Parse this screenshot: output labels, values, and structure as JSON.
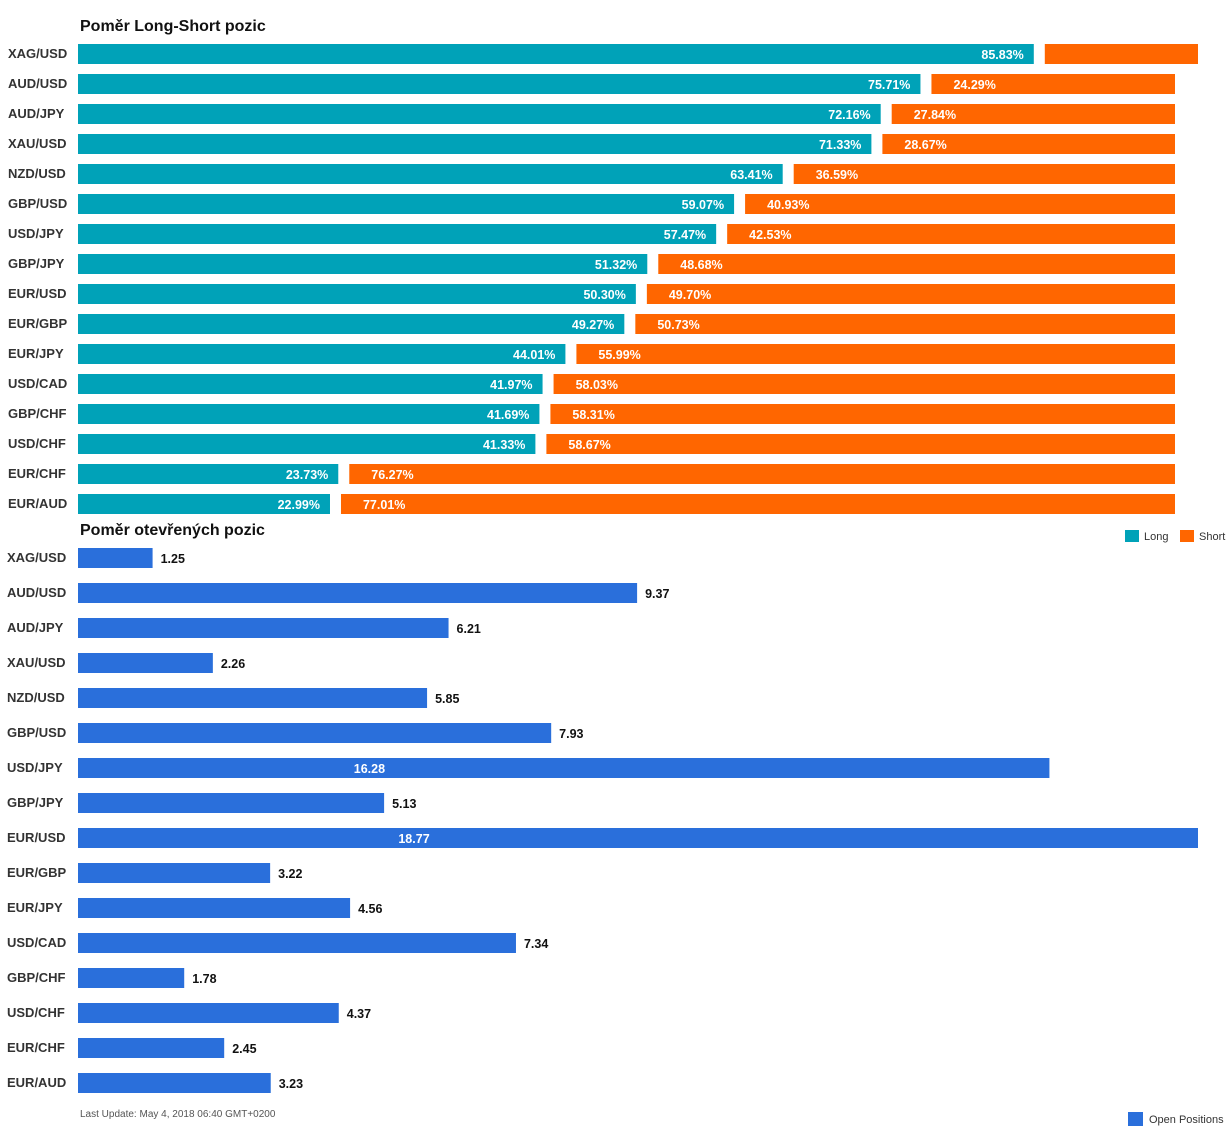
{
  "chart_data": [
    {
      "type": "bar",
      "stacked": true,
      "orientation": "horizontal",
      "title": "Poměr Long-Short pozic",
      "categories": [
        "XAG/USD",
        "AUD/USD",
        "AUD/JPY",
        "XAU/USD",
        "NZD/USD",
        "GBP/USD",
        "USD/JPY",
        "GBP/JPY",
        "EUR/USD",
        "EUR/GBP",
        "EUR/JPY",
        "USD/CAD",
        "GBP/CHF",
        "USD/CHF",
        "EUR/CHF",
        "EUR/AUD"
      ],
      "series": [
        {
          "name": "Long",
          "color": "#00a2b8",
          "values": [
            85.83,
            75.71,
            72.16,
            71.33,
            63.41,
            59.07,
            57.47,
            51.32,
            50.3,
            49.27,
            44.01,
            41.97,
            41.69,
            41.33,
            23.73,
            22.99
          ],
          "labels": [
            "85.83%",
            "75.71%",
            "72.16%",
            "71.33%",
            "63.41%",
            "59.07%",
            "57.47%",
            "51.32%",
            "50.30%",
            "49.27%",
            "44.01%",
            "41.97%",
            "41.69%",
            "41.33%",
            "23.73%",
            "22.99%"
          ]
        },
        {
          "name": "Short",
          "color": "#ff6600",
          "values": [
            14.17,
            24.29,
            27.84,
            28.67,
            36.59,
            40.93,
            42.53,
            48.68,
            49.7,
            50.73,
            55.99,
            58.03,
            58.31,
            58.67,
            76.27,
            77.01
          ],
          "labels": [
            "",
            "24.29%",
            "27.84%",
            "28.67%",
            "36.59%",
            "40.93%",
            "42.53%",
            "48.68%",
            "49.70%",
            "50.73%",
            "55.99%",
            "58.03%",
            "58.31%",
            "58.67%",
            "76.27%",
            "77.01%"
          ]
        }
      ],
      "xlim": [
        0,
        100
      ],
      "legend": "bottom-right"
    },
    {
      "type": "bar",
      "orientation": "horizontal",
      "title": "Poměr otevřených pozic",
      "categories": [
        "XAG/USD",
        "AUD/USD",
        "AUD/JPY",
        "XAU/USD",
        "NZD/USD",
        "GBP/USD",
        "USD/JPY",
        "GBP/JPY",
        "EUR/USD",
        "EUR/GBP",
        "EUR/JPY",
        "USD/CAD",
        "GBP/CHF",
        "USD/CHF",
        "EUR/CHF",
        "EUR/AUD"
      ],
      "series": [
        {
          "name": "Open Positions",
          "color": "#2a6fdb",
          "values": [
            1.25,
            9.37,
            6.21,
            2.26,
            5.85,
            7.93,
            16.28,
            5.13,
            18.77,
            3.22,
            4.56,
            7.34,
            1.78,
            4.37,
            2.45,
            3.23
          ],
          "labels": [
            "1.25",
            "9.37",
            "6.21",
            "2.26",
            "5.85",
            "7.93",
            "16.28",
            "5.13",
            "18.77",
            "3.22",
            "4.56",
            "7.34",
            "1.78",
            "4.37",
            "2.45",
            "3.23"
          ]
        }
      ],
      "xlim": [
        0,
        18.77
      ],
      "legend": "bottom-right"
    }
  ],
  "footer": "Last Update: May 4, 2018 06:40 GMT+0200"
}
